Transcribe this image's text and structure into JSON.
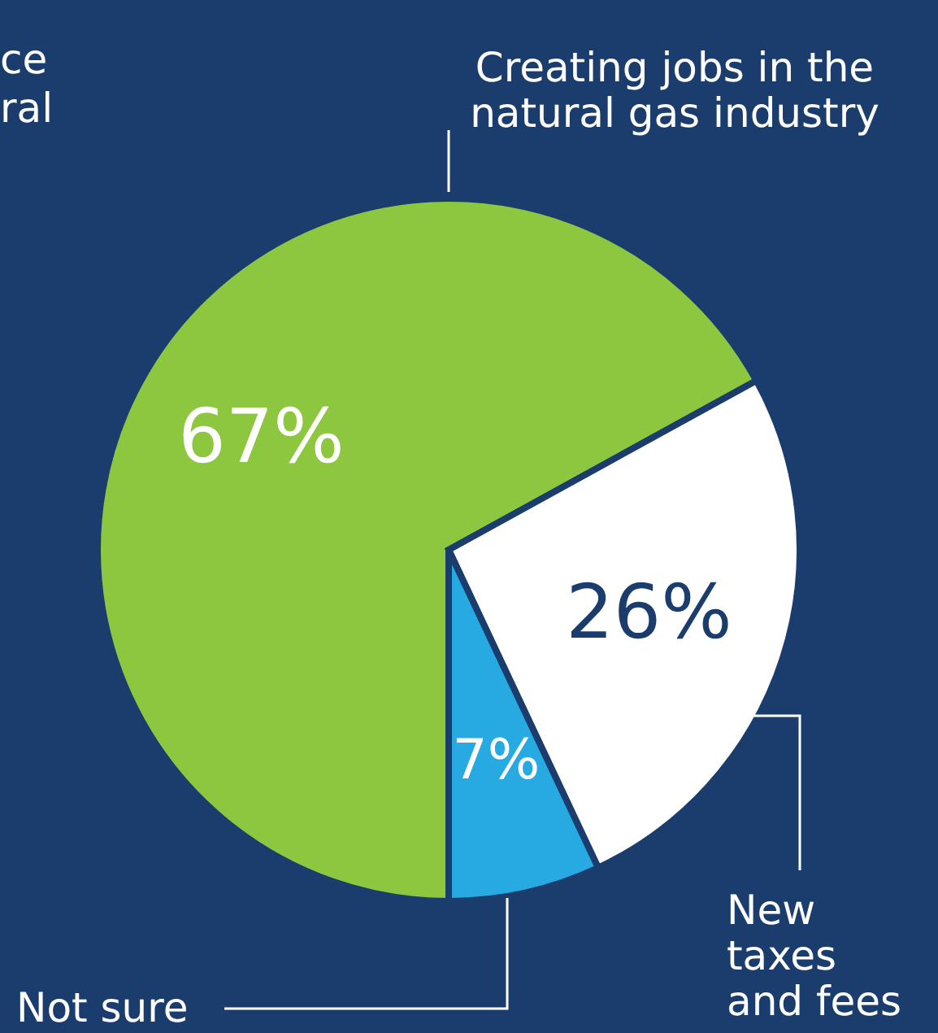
{
  "chart_data": {
    "type": "pie",
    "categories": [
      "Creating jobs in the\nnatural gas industry",
      "New\ntaxes\nand fees",
      "Not sure"
    ],
    "values": [
      67,
      26,
      7
    ],
    "colors": [
      "#8dc63f",
      "#ffffff",
      "#27a9e1"
    ],
    "value_labels": [
      "67%",
      "26%",
      "7%"
    ],
    "annotations": [
      "ce\nral"
    ]
  }
}
